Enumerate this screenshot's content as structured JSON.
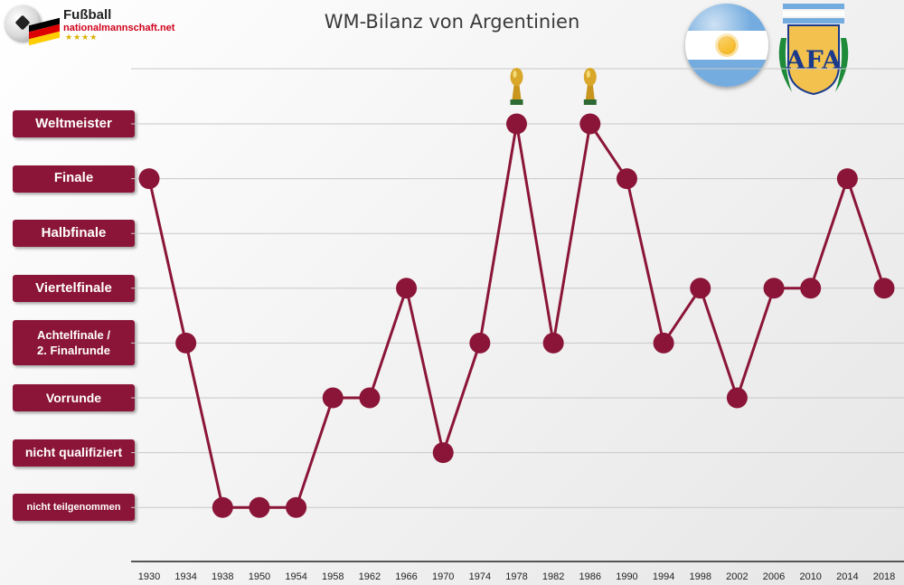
{
  "header": {
    "logo_line1": "Fußball",
    "logo_line2": "nationalmannschaft.net",
    "logo_stars": "★★★★"
  },
  "flag_colors": {
    "celeste": "#74acdf",
    "white": "#ffffff",
    "sun": "#f6b40e"
  },
  "germany_flag_colors": [
    "#000000",
    "#dd0000",
    "#ffce00"
  ],
  "afa_crest": {
    "text": "AFA",
    "colors": {
      "stripe": "#74acdf",
      "laurel": "#1e8b3a",
      "letters": "#1b3a8c",
      "field": "#f2c14e"
    }
  },
  "chart_data": {
    "type": "line",
    "title": "WM-Bilanz von Argentinien",
    "categories": [
      "1930",
      "1934",
      "1938",
      "1950",
      "1954",
      "1958",
      "1962",
      "1966",
      "1970",
      "1974",
      "1978",
      "1982",
      "1986",
      "1990",
      "1994",
      "1998",
      "2002",
      "2006",
      "2010",
      "2014",
      "2018"
    ],
    "levels": [
      "nicht teilgenommen",
      "nicht qualifiziert",
      "Vorrunde",
      "Achtelfinale / 2. Finalrunde",
      "Viertelfinale",
      "Halbfinale",
      "Finale",
      "Weltmeister"
    ],
    "level_labels": [
      {
        "line1": "nicht teilgenommen",
        "line2": ""
      },
      {
        "line1": "nicht qualifiziert",
        "line2": ""
      },
      {
        "line1": "Vorrunde",
        "line2": ""
      },
      {
        "line1": "Achtelfinale /",
        "line2": "2. Finalrunde"
      },
      {
        "line1": "Viertelfinale",
        "line2": ""
      },
      {
        "line1": "Halbfinale",
        "line2": ""
      },
      {
        "line1": "Finale",
        "line2": ""
      },
      {
        "line1": "Weltmeister",
        "line2": ""
      }
    ],
    "series": [
      {
        "values": [
          6,
          3,
          0,
          0,
          0,
          2,
          2,
          4,
          1,
          3,
          7,
          3,
          7,
          6,
          3,
          4,
          2,
          4,
          4,
          6,
          4
        ]
      }
    ],
    "trophy_years": [
      "1978",
      "1986"
    ],
    "colors": {
      "line": "#8b1538",
      "marker": "#8b1538",
      "label_bg": "#8b1538",
      "grid": "#c8c8c8",
      "axis": "#555555"
    },
    "grid": true,
    "legend": "none"
  }
}
